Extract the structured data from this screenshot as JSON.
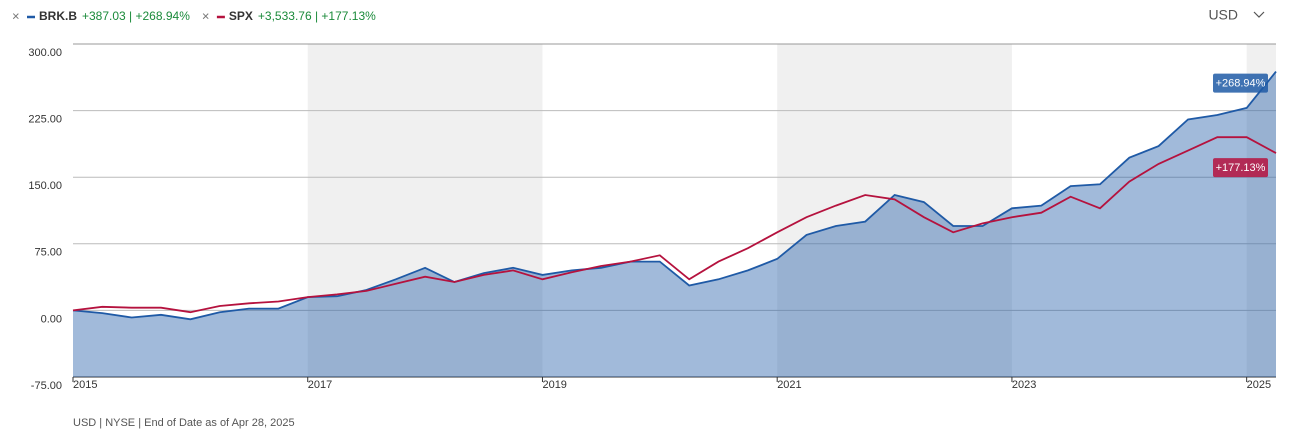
{
  "chart_data": {
    "type": "line",
    "currency": "USD",
    "footnote": "USD | NYSE | End of Date as of Apr 28, 2025",
    "x": [
      2015,
      2015.25,
      2015.5,
      2015.75,
      2016,
      2016.25,
      2016.5,
      2016.75,
      2017,
      2017.25,
      2017.5,
      2017.75,
      2018,
      2018.25,
      2018.5,
      2018.75,
      2019,
      2019.25,
      2019.5,
      2019.75,
      2020,
      2020.25,
      2020.5,
      2020.75,
      2021,
      2021.25,
      2021.5,
      2021.75,
      2022,
      2022.25,
      2022.5,
      2022.75,
      2023,
      2023.25,
      2023.5,
      2023.75,
      2024,
      2024.25,
      2024.5,
      2024.75,
      2025,
      2025.25
    ],
    "series": [
      {
        "name": "BRK.B",
        "stats": "+387.03 | +268.94%",
        "end_label": "+268.94%",
        "color": "#1f5aa6",
        "area": true,
        "values": [
          0,
          -3,
          -8,
          -5,
          -10,
          -2,
          2,
          2,
          15,
          16,
          23,
          35,
          48,
          32,
          42,
          48,
          40,
          45,
          48,
          55,
          55,
          28,
          35,
          45,
          58,
          85,
          95,
          100,
          130,
          122,
          95,
          95,
          115,
          118,
          140,
          142,
          172,
          185,
          215,
          220,
          228,
          268.94
        ]
      },
      {
        "name": "SPX",
        "stats": "+3,533.76 | +177.13%",
        "end_label": "+177.13%",
        "color": "#b5123e",
        "area": false,
        "values": [
          0,
          4,
          3,
          3,
          -2,
          5,
          8,
          10,
          15,
          18,
          22,
          30,
          38,
          32,
          40,
          45,
          35,
          43,
          50,
          55,
          62,
          35,
          55,
          70,
          88,
          105,
          118,
          130,
          125,
          105,
          88,
          98,
          105,
          110,
          128,
          115,
          145,
          165,
          180,
          195,
          195,
          177.13
        ]
      }
    ],
    "xlim": [
      2015,
      2025.25
    ],
    "xticks": [
      2015,
      2017,
      2019,
      2021,
      2023,
      2025
    ],
    "ylim": [
      -75,
      300
    ],
    "yticks": [
      {
        "value": -75,
        "label": "-75.00"
      },
      {
        "value": 0,
        "label": "0.00"
      },
      {
        "value": 75,
        "label": "75.00"
      },
      {
        "value": 150,
        "label": "150.00"
      },
      {
        "value": 225,
        "label": "225.00"
      },
      {
        "value": 300,
        "label": "300.00"
      }
    ],
    "grid": true,
    "shaded_bands": [
      [
        2017,
        2019
      ],
      [
        2021,
        2023
      ],
      [
        2025,
        2025.25
      ]
    ]
  }
}
